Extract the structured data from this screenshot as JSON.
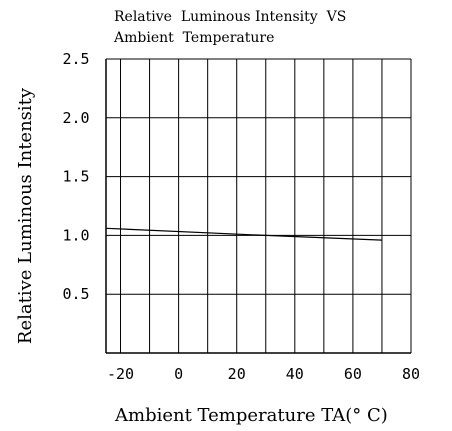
{
  "chart_data": {
    "type": "line",
    "title_line1": "Relative  Luminous Intensity  VS",
    "title_line2": "Ambient  Temperature",
    "xlabel": "Ambient  Temperature TA(° C)",
    "ylabel": "Relative  Luminous  Intensity",
    "xlim": [
      -25,
      80
    ],
    "ylim": [
      0,
      2.5
    ],
    "x_ticks": [
      -20,
      0,
      20,
      40,
      60,
      80
    ],
    "x_tick_labels": [
      "-20",
      "0",
      "20",
      "40",
      "60",
      "80"
    ],
    "y_ticks": [
      0.5,
      1.0,
      1.5,
      2.0,
      2.5
    ],
    "y_tick_labels": [
      "0.5",
      "1.0",
      "1.5",
      "2.0",
      "2.5"
    ],
    "grid": true,
    "series": [
      {
        "x": [
          -25,
          30,
          70
        ],
        "y": [
          1.06,
          1.0,
          0.96
        ]
      }
    ]
  }
}
